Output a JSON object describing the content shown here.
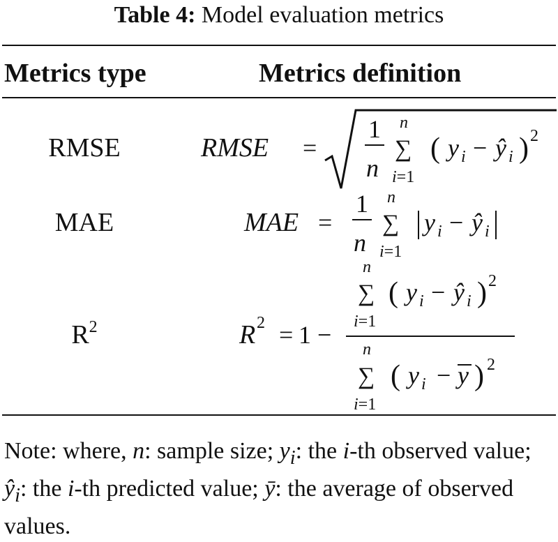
{
  "caption": {
    "label": "Table 4:",
    "text": "Model evaluation metrics"
  },
  "table": {
    "headers": [
      "Metrics type",
      "Metrics definition"
    ],
    "rows": [
      {
        "type": "RMSE",
        "formula_name": "RMSE",
        "formula": "RMSE = √( (1/n) Σ_{i=1}^{n} (y_i − ŷ_i)^2 )"
      },
      {
        "type": "MAE",
        "formula_name": "MAE",
        "formula": "MAE = (1/n) Σ_{i=1}^{n} |y_i − ŷ_i|"
      },
      {
        "type": "R",
        "type_sup": "2",
        "formula_name": "R",
        "formula": "R^2 = 1 − Σ_{i=1}^{n} (y_i − ŷ_i)^2 / Σ_{i=1}^{n} (y_i − ȳ)^2"
      }
    ]
  },
  "note": {
    "prefix": "Note: where, ",
    "n": "n",
    "n_def": ": sample size; ",
    "y": "y",
    "y_sub": "i",
    "y_def_a": ": the ",
    "i1": "i",
    "y_def_b": "-th observed value; ",
    "yhat": "ŷ",
    "yhat_sub": "i",
    "yhat_def_a": ": the ",
    "i2": "i",
    "yhat_def_b": "-th predicted value; ",
    "ybar": "ȳ",
    "ybar_def": ": the average of observed values."
  }
}
